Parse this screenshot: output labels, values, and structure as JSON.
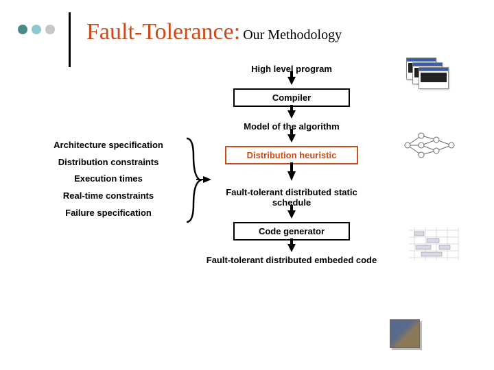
{
  "title": {
    "main": "Fault-Tolerance:",
    "sub": "Our Methodology",
    "main_color": "#c94a1a"
  },
  "bullets": {
    "colors": [
      "#4a8a8a",
      "#8fc7d0",
      "#c7c7c7"
    ]
  },
  "flow": {
    "items": [
      {
        "type": "label",
        "text": "High level program"
      },
      {
        "type": "arrow"
      },
      {
        "type": "box",
        "text": "Compiler",
        "border": "#000000",
        "color": "#000000"
      },
      {
        "type": "arrow"
      },
      {
        "type": "label",
        "text": "Model of the algorithm"
      },
      {
        "type": "arrow"
      },
      {
        "type": "box",
        "text": "Distribution heuristic",
        "border": "#c94a1a",
        "color": "#c94a1a"
      },
      {
        "type": "bigarrow"
      },
      {
        "type": "label",
        "text": "Fault-tolerant distributed static schedule"
      },
      {
        "type": "arrow"
      },
      {
        "type": "box",
        "text": "Code generator",
        "border": "#000000",
        "color": "#000000"
      },
      {
        "type": "arrow"
      },
      {
        "type": "label",
        "text": "Fault-tolerant distributed embeded code"
      }
    ]
  },
  "inputs": [
    "Architecture specification",
    "Distribution constraints",
    "Execution times",
    "Real-time constraints",
    "Failure specification"
  ]
}
